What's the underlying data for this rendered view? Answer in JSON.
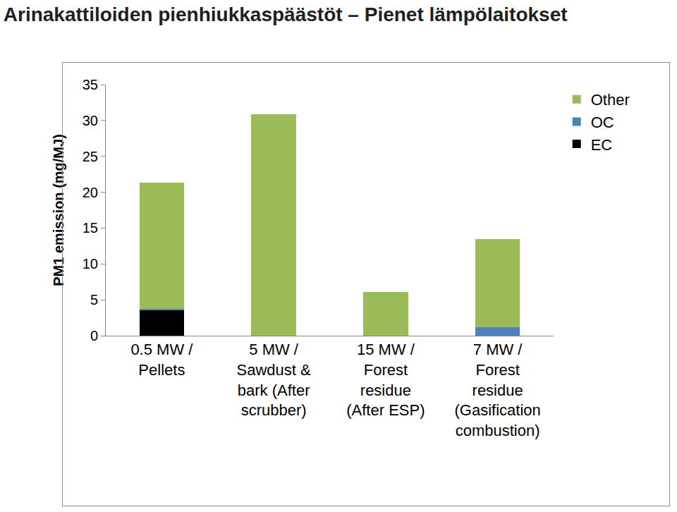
{
  "chart_data": {
    "type": "bar",
    "title": "Arinakattiloiden pienhiukkaspäästöt – Pienet lämpölaitokset",
    "y_label": "PM1 emission (mg/MJ)",
    "categories": [
      "0.5 MW /\nPellets",
      "5 MW /\nSawdust &\nbark (After\nscrubber)",
      "15 MW /\nForest\nresidue\n(After ESP)",
      "7 MW /\nForest\nresidue\n(Gasification\ncombustion)"
    ],
    "series": [
      {
        "name": "EC",
        "color": "#000000",
        "values": [
          3.5,
          0,
          0,
          0
        ]
      },
      {
        "name": "OC",
        "color": "#4f81bd",
        "values": [
          0.2,
          0,
          0,
          1.2
        ]
      },
      {
        "name": "Other",
        "color": "#9bbb59",
        "values": [
          17.6,
          30.9,
          6.1,
          12.3
        ]
      }
    ],
    "stacked": true,
    "ylim": [
      0,
      35
    ],
    "yticks": [
      0,
      5,
      10,
      15,
      20,
      25,
      30,
      35
    ],
    "grid": false,
    "legend": "right"
  }
}
